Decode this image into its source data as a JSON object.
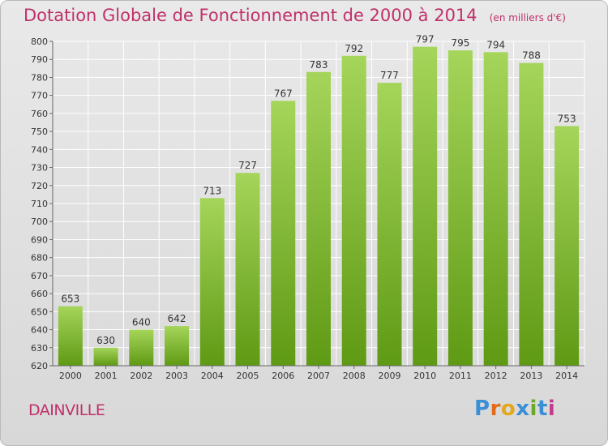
{
  "header": {
    "title": "Dotation Globale de Fonctionnement de 2000 à 2014",
    "unit": "(en milliers d'€)"
  },
  "footer": {
    "commune": "DAINVILLE",
    "brand": {
      "letters": [
        "P",
        "r",
        "o",
        "x",
        "i",
        "t",
        "i"
      ],
      "colors": [
        "#3a8fd6",
        "#e36b17",
        "#e3a81c",
        "#3a8fd6",
        "#6aaa2a",
        "#3a8fd6",
        "#c53a8b"
      ]
    }
  },
  "colors": {
    "title": "#c0306a",
    "bar_top": "#a5d55a",
    "bar_bottom": "#5f9a14",
    "grid": "#ffffff",
    "axis_text": "#333333"
  },
  "chart_data": {
    "type": "bar",
    "title": "Dotation Globale de Fonctionnement de 2000 à 2014",
    "subtitle": "(en milliers d'€)",
    "xlabel": "",
    "ylabel": "",
    "categories": [
      "2000",
      "2001",
      "2002",
      "2003",
      "2004",
      "2005",
      "2006",
      "2007",
      "2008",
      "2009",
      "2010",
      "2011",
      "2012",
      "2013",
      "2014"
    ],
    "values": [
      653,
      630,
      640,
      642,
      713,
      727,
      767,
      783,
      792,
      777,
      797,
      795,
      794,
      788,
      753
    ],
    "ylim": [
      620,
      800
    ],
    "yticks": [
      620,
      630,
      640,
      650,
      660,
      670,
      680,
      690,
      700,
      710,
      720,
      730,
      740,
      750,
      760,
      770,
      780,
      790,
      800
    ],
    "grid": true,
    "data_labels": true
  }
}
